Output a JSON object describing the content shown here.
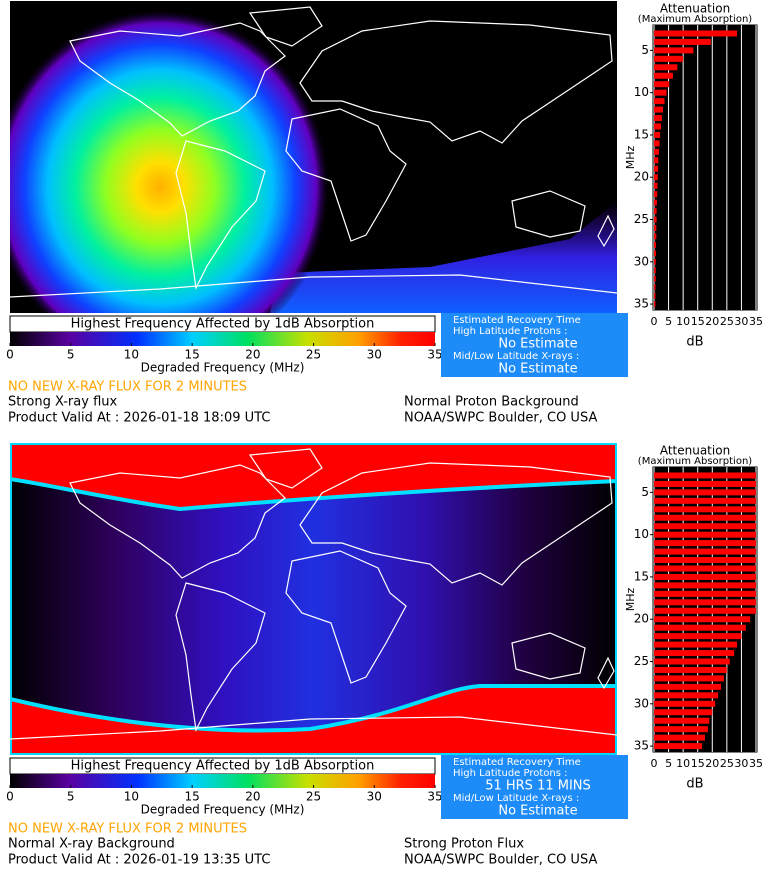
{
  "panels": [
    {
      "colorbar": {
        "title": "Highest Frequency Affected by 1dB Absorption",
        "xlabel": "Degraded Frequency (MHz)",
        "xlim": [
          0,
          35
        ],
        "xticks": [
          0,
          5,
          10,
          15,
          20,
          25,
          30,
          35
        ]
      },
      "attenuation": {
        "type": "bar",
        "title": "Attenuation",
        "subtitle": "(Maximum Absorption)",
        "ylabel": "MHz",
        "xlabel": "dB",
        "color": "#ff0000",
        "categories": [
          3,
          4,
          5,
          6,
          7,
          8,
          9,
          10,
          11,
          12,
          13,
          14,
          15,
          16,
          17,
          18,
          19,
          20,
          21,
          22,
          23,
          24,
          25,
          26,
          27,
          28,
          29,
          30,
          31,
          32,
          33,
          34,
          35
        ],
        "values": [
          28.5,
          19.5,
          13.5,
          10,
          8,
          6.5,
          5.2,
          4.3,
          3.6,
          3.1,
          2.7,
          2.4,
          2.1,
          1.9,
          1.7,
          1.5,
          1.4,
          1.3,
          1.2,
          1.1,
          1.0,
          0.9,
          0.9,
          0.8,
          0.8,
          0.7,
          0.7,
          0.6,
          0.6,
          0.6,
          0.5,
          0.5,
          0.5
        ],
        "xlim": [
          0,
          35
        ],
        "xticks": [
          0,
          5,
          10,
          15,
          20,
          25,
          30,
          35
        ],
        "ylim": [
          2,
          35.7
        ],
        "yticks": [
          5,
          10,
          15,
          20,
          25,
          30,
          35
        ],
        "grid": true
      },
      "recovery": {
        "title": "Estimated Recovery Time",
        "high_latitude_label": "High Latitude Protons :",
        "high_latitude_value": "No Estimate",
        "mid_low_label": "Mid/Low Latitude X-rays :",
        "mid_low_value": "No Estimate"
      },
      "xray_notice": "NO NEW X-RAY FLUX FOR 2 MINUTES",
      "xray_status": "Strong X-ray flux",
      "valid_at": "Product Valid At : 2026-01-18 18:09 UTC",
      "proton_status": "Normal Proton Background",
      "source": "NOAA/SWPC Boulder, CO USA"
    },
    {
      "colorbar": {
        "title": "Highest Frequency Affected by 1dB Absorption",
        "xlabel": "Degraded Frequency (MHz)",
        "xlim": [
          0,
          35
        ],
        "xticks": [
          0,
          5,
          10,
          15,
          20,
          25,
          30,
          35
        ]
      },
      "attenuation": {
        "type": "bar",
        "title": "Attenuation",
        "subtitle": "(Maximum Absorption)",
        "ylabel": "MHz",
        "xlabel": "dB",
        "color": "#ff0000",
        "categories": [
          3,
          4,
          5,
          6,
          7,
          8,
          9,
          10,
          11,
          12,
          13,
          14,
          15,
          16,
          17,
          18,
          19,
          20,
          21,
          22,
          23,
          24,
          25,
          26,
          27,
          28,
          29,
          30,
          31,
          32,
          33,
          34,
          35
        ],
        "values": [
          35,
          35,
          35,
          35,
          35,
          35,
          35,
          35,
          35,
          35,
          35,
          35,
          35,
          35,
          35,
          35,
          35,
          33,
          31.5,
          30,
          28.5,
          27.5,
          26,
          25,
          24,
          23,
          22,
          21,
          20,
          19,
          18.5,
          17.5,
          16.5
        ],
        "xlim": [
          0,
          35
        ],
        "xticks": [
          0,
          5,
          10,
          15,
          20,
          25,
          30,
          35
        ],
        "ylim": [
          2,
          35.7
        ],
        "yticks": [
          5,
          10,
          15,
          20,
          25,
          30,
          35
        ],
        "grid": true
      },
      "recovery": {
        "title": "Estimated Recovery Time",
        "high_latitude_label": "High Latitude Protons :",
        "high_latitude_value": "51 HRS 11 MINS",
        "mid_low_label": "Mid/Low Latitude X-rays :",
        "mid_low_value": "No Estimate"
      },
      "xray_notice": "NO NEW X-RAY FLUX FOR 2 MINUTES",
      "xray_status": "Normal X-ray Background",
      "valid_at": "Product Valid At : 2026-01-19 13:35 UTC",
      "proton_status": "Strong Proton Flux",
      "source": "NOAA/SWPC Boulder, CO USA"
    }
  ]
}
